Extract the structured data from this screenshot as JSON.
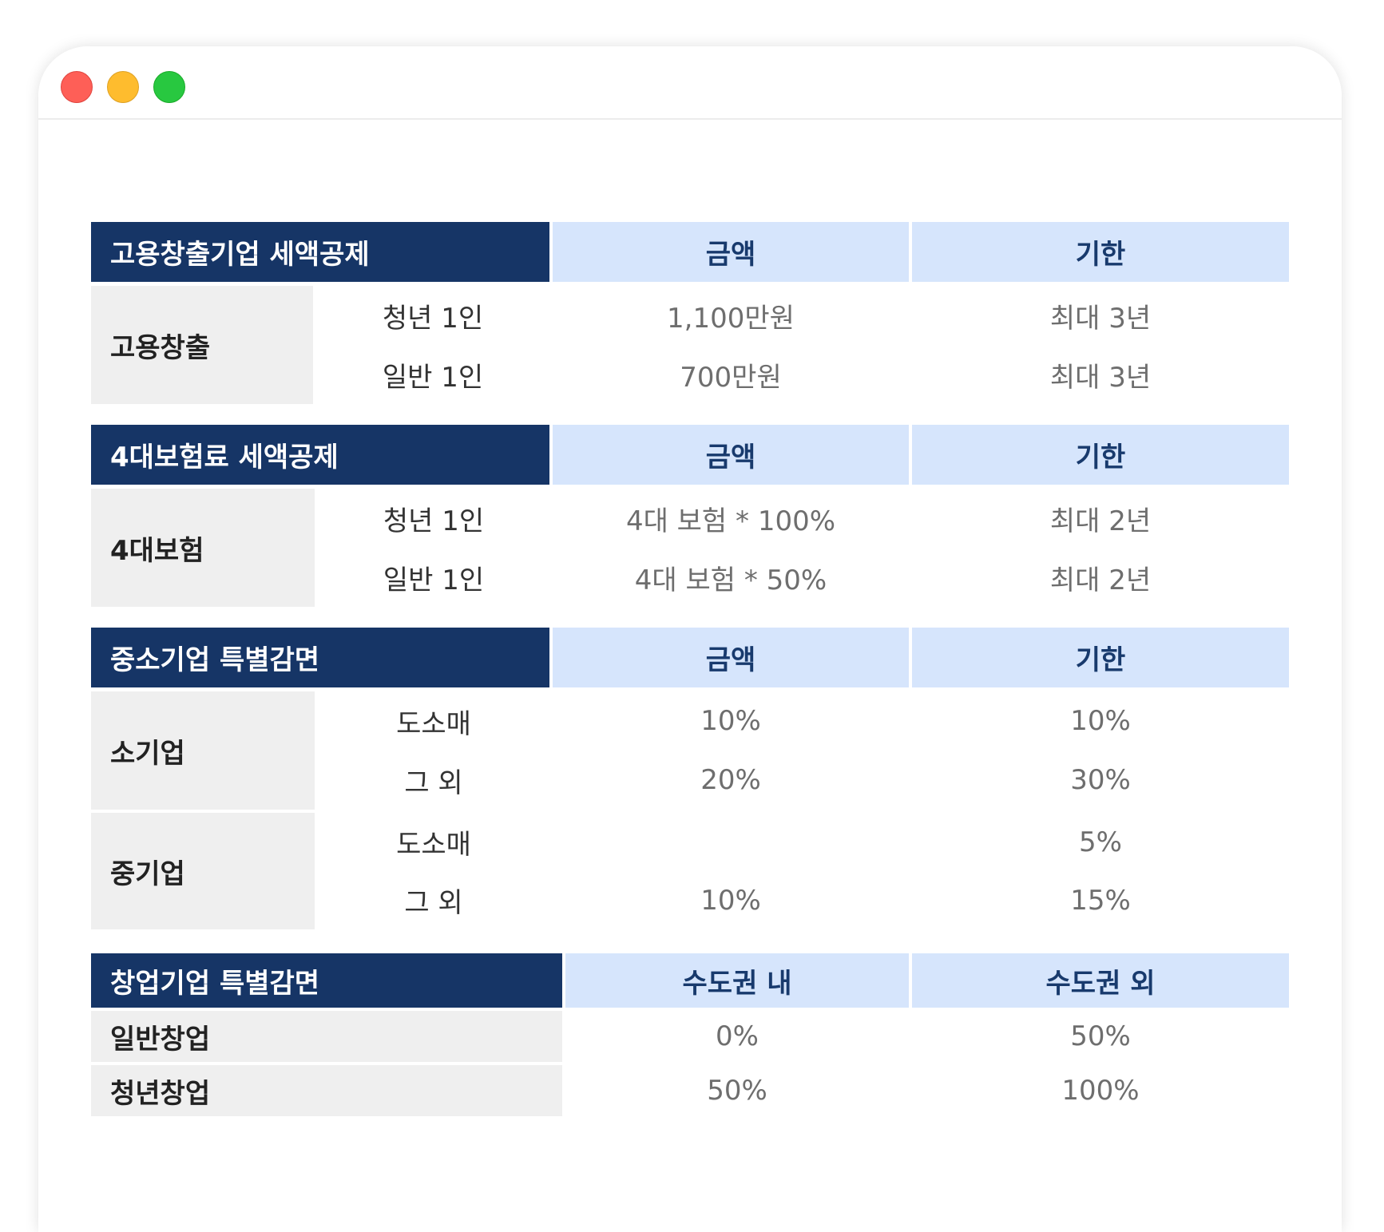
{
  "sections": [
    {
      "title": "고용창출기업 세액공제",
      "col1": "금액",
      "col2": "기한",
      "groups": [
        {
          "category": "고용창출",
          "rows": [
            {
              "sub": "청년 1인",
              "amount": "1,100만원",
              "period": "최대 3년"
            },
            {
              "sub": "일반 1인",
              "amount": "700만원",
              "period": "최대 3년"
            }
          ]
        }
      ]
    },
    {
      "title": "4대보험료 세액공제",
      "col1": "금액",
      "col2": "기한",
      "groups": [
        {
          "category": "4대보험",
          "rows": [
            {
              "sub": "청년 1인",
              "amount": "4대 보험 * 100%",
              "period": "최대 2년"
            },
            {
              "sub": "일반 1인",
              "amount": "4대 보험 * 50%",
              "period": "최대 2년"
            }
          ]
        }
      ]
    },
    {
      "title": "중소기업 특별감면",
      "col1": "금액",
      "col2": "기한",
      "groups": [
        {
          "category": "소기업",
          "rows": [
            {
              "sub": "도소매",
              "amount": "10%",
              "period": "10%"
            },
            {
              "sub": "그 외",
              "amount": "20%",
              "period": "30%"
            }
          ]
        },
        {
          "category": "중기업",
          "rows": [
            {
              "sub": "도소매",
              "amount": "",
              "period": "5%"
            },
            {
              "sub": "그 외",
              "amount": "10%",
              "period": "15%"
            }
          ]
        }
      ]
    },
    {
      "title": "창업기업 특별감면",
      "col1": "수도권 내",
      "col2": "수도권 외",
      "rows": [
        {
          "category": "일반창업",
          "inside": "0%",
          "outside": "50%"
        },
        {
          "category": "청년창업",
          "inside": "50%",
          "outside": "100%"
        }
      ]
    }
  ]
}
